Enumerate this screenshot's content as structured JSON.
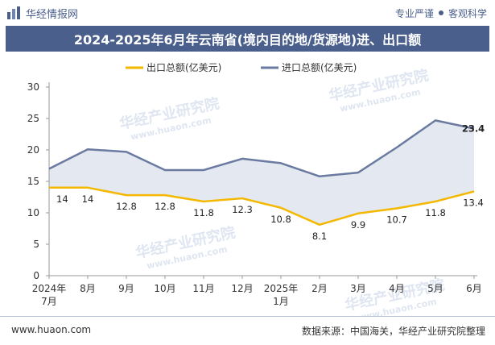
{
  "header": {
    "brand": "华经情报网",
    "tagline_left": "专业严谨",
    "tagline_right": "客观科学"
  },
  "watermark": {
    "text": "华经产业研究院",
    "url": "www.huaon.com"
  },
  "colors": {
    "export": "#f5b800",
    "import": "#6a7aa0",
    "fill": "#e4e8f1",
    "header_bar": "#4a5f8c"
  },
  "footer": {
    "website": "www.huaon.com",
    "source": "数据来源：中国海关，华经产业研究院整理"
  },
  "chart_data": {
    "type": "line",
    "title": "2024-2025年6月年云南省(境内目的地/货源地)进、出口额",
    "categories": [
      [
        "2024年",
        "7月"
      ],
      [
        "8月"
      ],
      [
        "9月"
      ],
      [
        "10月"
      ],
      [
        "11月"
      ],
      [
        "12月"
      ],
      [
        "2025年",
        "1月"
      ],
      [
        "2月"
      ],
      [
        "3月"
      ],
      [
        "4月"
      ],
      [
        "5月"
      ],
      [
        "6月"
      ]
    ],
    "ylim": [
      0,
      30
    ],
    "yticks": [
      0,
      5,
      10,
      15,
      20,
      25,
      30
    ],
    "legend_position": "top-center",
    "grid": false,
    "series": [
      {
        "name": "出口总额(亿美元)",
        "values": [
          14.0,
          14.0,
          12.8,
          12.8,
          11.8,
          12.3,
          10.8,
          8.1,
          9.9,
          10.7,
          11.8,
          13.4
        ],
        "labels": [
          "14",
          "14",
          "12.8",
          "12.8",
          "11.8",
          "12.3",
          "10.8",
          "8.1",
          "9.9",
          "10.7",
          "11.8",
          "13.4"
        ]
      },
      {
        "name": "进口总额(亿美元)",
        "values": [
          17.0,
          20.1,
          19.7,
          16.8,
          16.8,
          18.6,
          17.9,
          15.8,
          16.4,
          20.4,
          24.7,
          23.4
        ],
        "labels": [
          "",
          "",
          "",
          "",
          "",
          "",
          "",
          "",
          "",
          "",
          "",
          "23.4"
        ]
      }
    ]
  }
}
